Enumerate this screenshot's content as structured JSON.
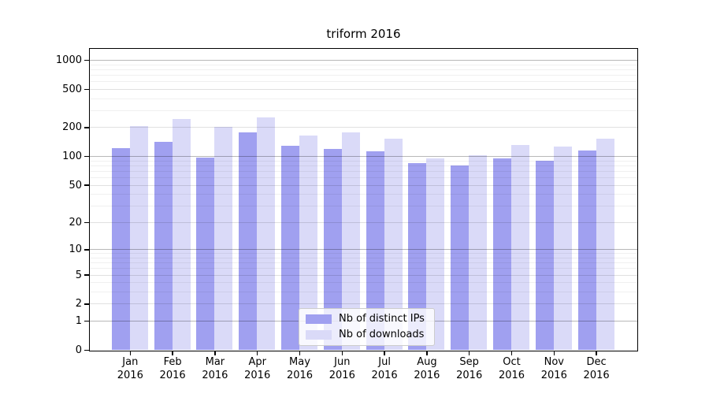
{
  "chart_data": {
    "type": "bar",
    "title": "triform 2016",
    "categories": [
      "Jan",
      "Feb",
      "Mar",
      "Apr",
      "May",
      "Jun",
      "Jul",
      "Aug",
      "Sep",
      "Oct",
      "Nov",
      "Dec"
    ],
    "x_year_label": "2016",
    "series": [
      {
        "name": "Nb of distinct IPs",
        "color": "#a0a0f0",
        "values": [
          122,
          141,
          96,
          176,
          128,
          120,
          112,
          84,
          80,
          95,
          89,
          115
        ]
      },
      {
        "name": "Nb of downloads",
        "color": "#dadaf8",
        "values": [
          206,
          243,
          203,
          253,
          164,
          177,
          151,
          95,
          102,
          131,
          126,
          153
        ]
      }
    ],
    "yscale": "log10(value+1)",
    "yticks": [
      1000,
      500,
      200,
      100,
      50,
      20,
      10,
      5,
      2,
      1,
      0
    ],
    "ylim": [
      0,
      1300
    ],
    "grid": true,
    "legend": {
      "position": "lower center"
    }
  }
}
